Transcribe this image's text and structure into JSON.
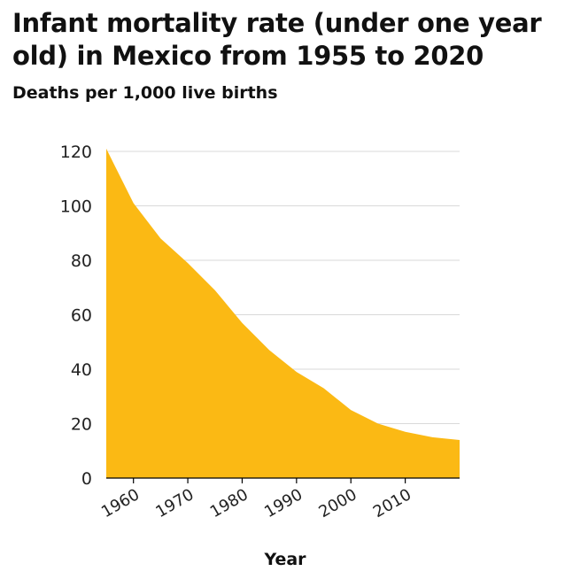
{
  "title": "Infant mortality rate (under one year old) in Mexico from 1955 to 2020",
  "subtitle": "Deaths per 1,000 live births",
  "chart_data": {
    "type": "area",
    "title": "Infant mortality rate (under one year old) in Mexico from 1955 to 2020",
    "ylabel": "Deaths per 1,000 live births",
    "xlabel": "Year",
    "x": [
      1955,
      1960,
      1965,
      1970,
      1975,
      1980,
      1985,
      1990,
      1995,
      2000,
      2005,
      2010,
      2015,
      2020
    ],
    "values": [
      121,
      101,
      88,
      79,
      69,
      57,
      47,
      39,
      33,
      25,
      20,
      17,
      15,
      14
    ],
    "xlim": [
      1955,
      2020
    ],
    "ylim": [
      0,
      120
    ],
    "yticks": [
      0,
      20,
      40,
      60,
      80,
      100,
      120
    ],
    "xticks": [
      1960,
      1970,
      1980,
      1990,
      2000,
      2010
    ],
    "grid": true,
    "legend": "none",
    "colors": {
      "area": "#fbb914",
      "grid": "#d9d9d9",
      "axis": "#000000"
    }
  }
}
